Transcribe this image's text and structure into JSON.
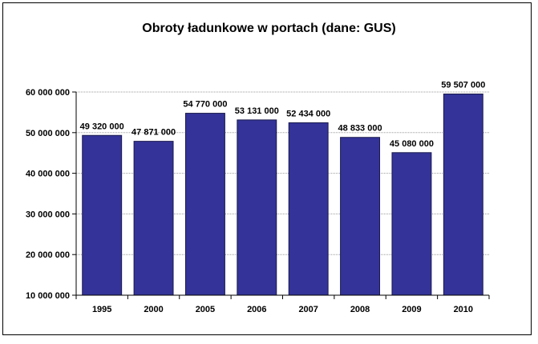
{
  "chart_data": {
    "type": "bar",
    "title": "Obroty ładunkowe w portach (dane: GUS)",
    "categories": [
      "1995",
      "2000",
      "2005",
      "2006",
      "2007",
      "2008",
      "2009",
      "2010"
    ],
    "values": [
      49320000,
      47871000,
      54770000,
      53131000,
      52434000,
      48833000,
      45080000,
      59507000
    ],
    "value_labels": [
      "49 320 000",
      "47 871 000",
      "54 770 000",
      "53 131 000",
      "52 434 000",
      "48 833 000",
      "45 080 000",
      "59 507 000"
    ],
    "y_ticks": [
      10000000,
      20000000,
      30000000,
      40000000,
      50000000,
      60000000
    ],
    "y_tick_labels": [
      "10 000 000",
      "20 000 000",
      "30 000 000",
      "40 000 000",
      "50 000 000",
      "60 000 000"
    ],
    "ylim": [
      10000000,
      60000000
    ],
    "xlabel": "",
    "ylabel": "",
    "grid": true,
    "legend": "none",
    "colors": {
      "bar": "#333399",
      "bar_edge": "#1a1a4d",
      "grid": "#999999",
      "axis": "#000000"
    }
  }
}
